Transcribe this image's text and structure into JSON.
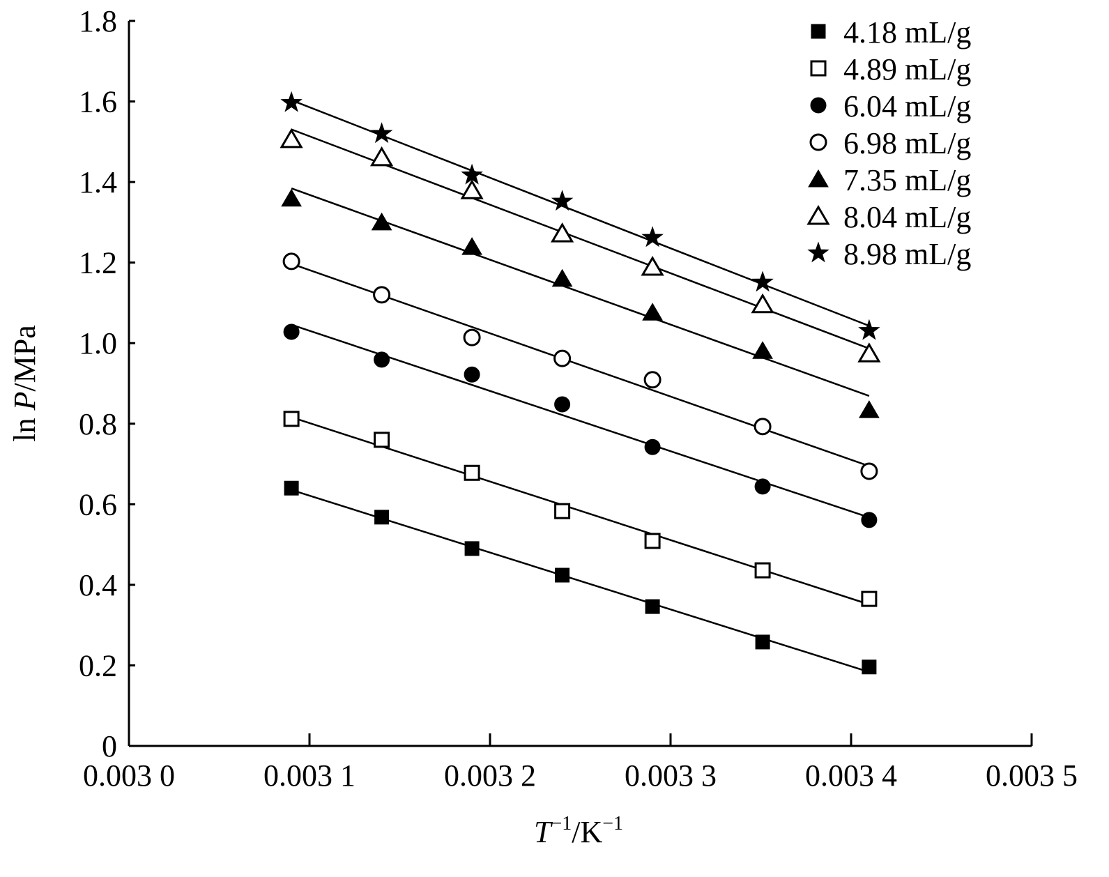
{
  "chart_data": {
    "type": "scatter",
    "title": "",
    "xlabel": "T^-1/K^-1",
    "xlabel_parts": {
      "var": "T",
      "sup1": "−1",
      "unit": "/K",
      "sup2": "−1"
    },
    "ylabel_parts": {
      "pre": "ln ",
      "var": "P",
      "unit": "/MPa"
    },
    "ylabel": "ln P/MPa",
    "xlim": [
      0.003,
      0.0035
    ],
    "ylim": [
      0,
      1.8
    ],
    "x_ticks": [
      0.003,
      0.0031,
      0.0032,
      0.0033,
      0.0034,
      0.0035
    ],
    "x_tick_labels": [
      "0.003 0",
      "0.003 1",
      "0.003 2",
      "0.003 3",
      "0.003 4",
      "0.003 5"
    ],
    "y_ticks": [
      0,
      0.2,
      0.4,
      0.6,
      0.8,
      1.0,
      1.2,
      1.4,
      1.6,
      1.8
    ],
    "y_tick_labels": [
      "0",
      "0.2",
      "0.4",
      "0.6",
      "0.8",
      "1.0",
      "1.2",
      "1.4",
      "1.6",
      "1.8"
    ],
    "grid": false,
    "legend_position": "top-right",
    "fit": "linear",
    "x": [
      0.00309,
      0.00314,
      0.00319,
      0.00324,
      0.00329,
      0.003351,
      0.00341
    ],
    "series": [
      {
        "name": "4.18 mL/g",
        "marker": "square-filled",
        "values": [
          0.64,
          0.568,
          0.49,
          0.424,
          0.346,
          0.258,
          0.196
        ]
      },
      {
        "name": "4.89 mL/g",
        "marker": "square-open",
        "values": [
          0.812,
          0.76,
          0.678,
          0.583,
          0.509,
          0.436,
          0.365
        ]
      },
      {
        "name": "6.04 mL/g",
        "marker": "circle-filled",
        "values": [
          1.028,
          0.959,
          0.922,
          0.848,
          0.742,
          0.644,
          0.561
        ]
      },
      {
        "name": "6.98 mL/g",
        "marker": "circle-open",
        "values": [
          1.203,
          1.12,
          1.014,
          0.962,
          0.909,
          0.793,
          0.682
        ]
      },
      {
        "name": "7.35 mL/g",
        "marker": "triangle-filled",
        "values": [
          1.359,
          1.3,
          1.239,
          1.16,
          1.076,
          0.981,
          0.834
        ]
      },
      {
        "name": "8.04 mL/g",
        "marker": "triangle-open",
        "values": [
          1.506,
          1.461,
          1.379,
          1.272,
          1.189,
          1.096,
          0.974
        ]
      },
      {
        "name": "8.98 mL/g",
        "marker": "star-filled",
        "values": [
          1.597,
          1.52,
          1.417,
          1.352,
          1.262,
          1.151,
          1.031
        ]
      }
    ]
  }
}
